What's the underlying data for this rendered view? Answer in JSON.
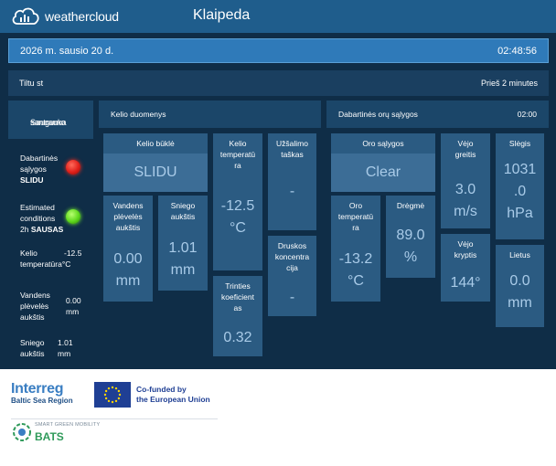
{
  "header": {
    "brand": "weathercloud",
    "city": "Klaipeda"
  },
  "datebar": {
    "date": "2026 m. sausio 20 d.",
    "time": "02:48:56"
  },
  "station": {
    "name": "Tiltu st",
    "updated": "Prieš 2 minutes"
  },
  "sidebar": {
    "title_line1": "Saugumo",
    "title_line2": "santrauka",
    "current": {
      "label_line1": "Dabartinės",
      "label_line2": "sąlygos",
      "status": "SLIDU",
      "led": "red"
    },
    "estimated": {
      "label_line1": "Estimated",
      "label_line2": "conditions",
      "label_prefix": "2h",
      "status": "SAUSAS",
      "led": "green"
    },
    "road_temp": {
      "label_line1": "Kelio",
      "label_line2": "temperatūra°C",
      "value": "-12.5"
    },
    "water_film": {
      "label_line1": "Vandens",
      "label_line2": "plėvelės",
      "label_line3": "aukštis",
      "value_line1": "0.00",
      "value_line2": "mm"
    },
    "snow": {
      "label_line1": "Sniego",
      "label_line2": "aukštis",
      "value_line1": "1.01",
      "value_line2": "mm"
    }
  },
  "road_panel": {
    "title": "Kelio duomenys",
    "road_state": {
      "label": "Kelio būklė",
      "value": "SLIDU"
    },
    "water": {
      "label_line1": "Vandens",
      "label_line2": "plėvelės",
      "label_line3": "aukštis",
      "value_line1": "0.00",
      "value_line2": "mm"
    },
    "snow": {
      "label_line1": "Sniego",
      "label_line2": "aukštis",
      "value_line1": "1.01",
      "value_line2": "mm"
    },
    "road_temp": {
      "label_line1": "Kelio",
      "label_line2": "temperatū",
      "label_line3": "ra",
      "value_line1": "-12.5",
      "value_line2": "°C"
    },
    "friction": {
      "label_line1": "Trinties",
      "label_line2": "koeficient",
      "label_line3": "as",
      "value": "0.32"
    },
    "freeze": {
      "label_line1": "Užšalimo",
      "label_line2": "taškas",
      "value": "-"
    },
    "salt": {
      "label_line1": "Druskos",
      "label_line2": "koncentra",
      "label_line3": "cija",
      "value": "-"
    }
  },
  "weather_panel": {
    "title": "Dabartinės orų sąlygos",
    "time": "02:00",
    "condition": {
      "label": "Oro sąlygos",
      "value": "Clear"
    },
    "air_temp": {
      "label_line1": "Oro",
      "label_line2": "temperatū",
      "label_line3": "ra",
      "value_line1": "-13.2",
      "value_line2": "°C"
    },
    "humidity": {
      "label": "Drėgmė",
      "value_line1": "89.0",
      "value_line2": "%"
    },
    "wind_speed": {
      "label_line1": "Vėjo",
      "label_line2": "greitis",
      "value_line1": "3.0",
      "value_line2": "m/s"
    },
    "wind_dir": {
      "label_line1": "Vėjo",
      "label_line2": "kryptis",
      "value": "144°"
    },
    "pressure": {
      "label": "Slėgis",
      "value_line1": "1031",
      "value_line2": ".0",
      "value_line3": "hPa"
    },
    "rain": {
      "label": "Lietus",
      "value_line1": "0.0",
      "value_line2": "mm"
    }
  },
  "footer": {
    "interreg": "Interreg",
    "region": "Baltic Sea Region",
    "cofund_line1": "Co-funded by",
    "cofund_line2": "the European Union",
    "sgm": "SMART GREEN MOBILITY",
    "bats": "BATS"
  },
  "colors": {
    "accent": "#2f7ab9",
    "background": "#0f2d47",
    "tile": "#2b5b82",
    "value_text": "#a9cbe8",
    "alert_red": "#e0201a",
    "ok_green": "#5ed81c"
  }
}
